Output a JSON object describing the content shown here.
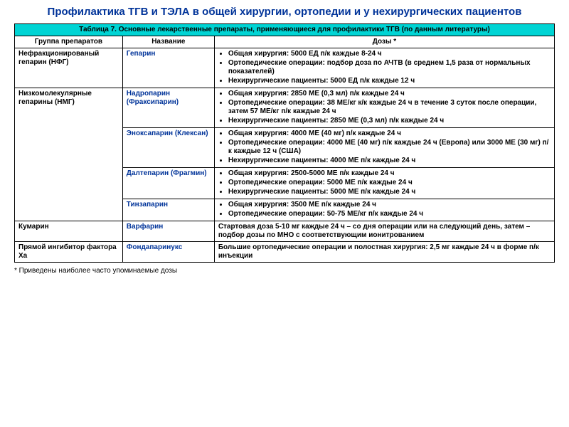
{
  "title": "Профилактика ТГВ и ТЭЛА в общей хирургии, ортопедии и у нехирургических пациентов",
  "table_caption": "Таблица 7. Основные лекарственные препараты, применяющиеся для профилактики ТГВ (по данным литературы)",
  "headers": {
    "group": "Группа препаратов",
    "name": "Название",
    "dose": "Дозы *"
  },
  "rows": [
    {
      "group": "Нефракционированый гепарин (НФГ)",
      "name": "Гепарин",
      "doses": [
        "Общая хирургия: 5000 ЕД  п/к каждые 8-24 ч",
        "Ортопедические операции: подбор доза  по АЧТВ (в среднем 1,5 раза от нормальных показателей)",
        "Нехирургические пациенты: 5000  ЕД п/к каждые 12 ч"
      ]
    },
    {
      "group": "Низкомолекулярные гепарины (НМГ)",
      "rowspan": 4,
      "name": "Надропарин (Фраксипарин)",
      "doses": [
        "Общая хирургия: 2850 МЕ (0,3 мл) п/к каждые 24 ч",
        "Ортопедические операции: 38 МЕ/кг к/к каждые 24 ч  в течение 3 суток после операции, затем 57 МЕ/кг п/к каждые 24 ч",
        "Нехирургические пациенты: 2850 МЕ (0,3 мл) п/к каждые 24 ч"
      ]
    },
    {
      "name": "Эноксапарин (Клексан)",
      "doses": [
        "Общая хирургия: 4000 МЕ (40 мг) п/к каждые 24 ч",
        "Ортопедические операции: 4000 МЕ (40 мг) п/к каждые 24 ч (Европа) или 3000 МЕ (30 мг) п/к каждые 12 ч (США)",
        "Нехирургические пациенты: 4000 МЕ п/к каждые 24 ч"
      ]
    },
    {
      "name": "Далтепарин (Фрагмин)",
      "doses": [
        "Общая хирургия: 2500-5000 МЕ п/к каждые 24 ч",
        "Ортопедические операции: 5000 МЕ п/к каждые 24 ч",
        "Нехирургические пациенты: 5000 МЕ п/к каждые 24 ч"
      ]
    },
    {
      "name": "Тинзапарин",
      "doses": [
        "Общая хирургия: 3500 МЕ п/к каждые 24 ч",
        "Ортопедические операции: 50-75 МЕ/кг п/к каждые 24 ч"
      ]
    },
    {
      "group": "Кумарин",
      "name": "Варфарин",
      "plain_dose": "Стартовая доза 5-10 мг каждые 24 ч – со дня операции или на следующий день, затем – подбор дозы по МНО с соответствующим ионитрованием"
    },
    {
      "group": "Прямой ингибитор фактора Ха",
      "name": "Фондапаринукс",
      "plain_dose": "Большие ортопедические операции и полостная хирургия: 2,5 мг каждые 24 ч в форме п/к инъекции"
    }
  ],
  "footnote": "* Приведены наиболее часто упоминаемые дозы",
  "colors": {
    "title": "#003399",
    "caption_bg": "#00d4d4",
    "drug_name": "#003399",
    "border": "#000000",
    "bg": "#ffffff"
  }
}
